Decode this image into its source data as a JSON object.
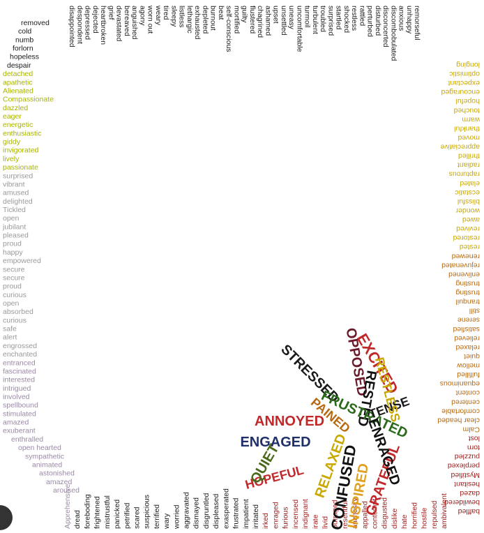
{
  "words": {
    "top": [
      {
        "color": "#1a1a1a",
        "words": [
          "disappointed",
          "despondent",
          "depressed",
          "dejected",
          "heartbroken",
          "grief",
          "devastated",
          "bereaved",
          "anguished",
          "agony",
          "worn out",
          "weary",
          "tired",
          "sleepy",
          "listless",
          "lethargic",
          "exhausted",
          "depleted",
          "burnout",
          "beat",
          "self-conscious",
          "mortified",
          "guilty",
          "flustered",
          "chagrined",
          "ashamed",
          "upset",
          "unsettled",
          "uneasy",
          "uncomfortable",
          "turmoil",
          "turbulent",
          "troubled",
          "surprised",
          "startled",
          "shocked",
          "restless",
          "rattled",
          "perturbed",
          "disturbed",
          "disconcerted",
          "discombobulated",
          "anxious",
          "unhappy",
          "remorseful"
        ]
      }
    ],
    "right": [
      {
        "color": "#c9a800",
        "words": [
          "longing",
          "optimistic",
          "expectant",
          "encouraged",
          "hopeful",
          "touched",
          "warm",
          "thankful",
          "moved",
          "appreciative",
          "thrilled",
          "radiant",
          "rapturous",
          "elated",
          "ecstatic",
          "blissful",
          "wonder",
          "awed",
          "revived",
          "restored",
          "rested"
        ]
      },
      {
        "color": "#b86a12",
        "words": [
          "renewed",
          "rejuvenated",
          "enlivened",
          "trusting",
          "trusting",
          "tranquil",
          "still",
          "serene",
          "satisfied",
          "relieved",
          "relaxed",
          "quiet",
          "mellow",
          "fulfilled",
          "equanimous",
          "content",
          "centered",
          "comfortable",
          "clear headed",
          "Calm"
        ]
      },
      {
        "color": "#9e1a1a",
        "words": [
          "lost",
          "torn",
          "puzzled",
          "perplexed",
          "Mystified",
          "hesitant",
          "dazed",
          "bewildered",
          "baffled"
        ]
      }
    ],
    "left": [
      {
        "color": "#1a1a1a",
        "words": [
          "removed",
          "cold",
          "numb",
          "forlorn",
          "hopeless",
          "despair"
        ]
      },
      {
        "color": "#a9b400",
        "words": [
          "detached",
          "apathetic",
          "Alienated",
          "Compassionate",
          "dazzled",
          "eager",
          "energetic",
          "enthusiastic",
          "giddy",
          "invigorated",
          "lively",
          "passionate"
        ]
      },
      {
        "color": "#9a9a9a",
        "words": [
          "surprised",
          "vibrant",
          "amused",
          "delighted",
          "Tickled",
          "open",
          "jubilant",
          "pleased",
          "proud",
          "happy",
          "empowered",
          "secure",
          "secure",
          "proud",
          "curious",
          "open",
          "absorbed",
          "curious",
          "safe",
          "alert",
          "engrossed",
          "enchanted"
        ]
      },
      {
        "color": "#9b8aa6",
        "words": [
          "entranced",
          "fascinated",
          "interested",
          "intrigued",
          "involved",
          "spellbound",
          "stimulated",
          "amazed",
          "exuberant",
          "enthralled",
          "open hearted",
          "sympathetic",
          "animated",
          "astonished",
          "amazed",
          "aroused"
        ]
      }
    ],
    "bottom": [
      {
        "color": "#9b8aa6",
        "words": [
          "Apprehensive"
        ]
      },
      {
        "color": "#1a1a1a",
        "words": [
          "dread",
          "foreboding",
          "frightened",
          "mistrustful",
          "panicked",
          "petrified",
          "scared",
          "suspicious",
          "terrified",
          "wary",
          "worried",
          "aggravated",
          "dismayed",
          "disgruntled",
          "displeased",
          "exasperated",
          "frustrated",
          "impatient",
          "irritated"
        ]
      },
      {
        "color": "#9e1a1a",
        "words": [
          "irked",
          "enraged",
          "furious",
          "incensed",
          "indignant",
          "irate",
          "livid",
          "outraged",
          "resentful",
          "animosity",
          "appalled",
          "contempt",
          "disgusted",
          "dislike",
          "hate",
          "horrified",
          "hostile",
          "repulsed",
          "ambivalent"
        ]
      }
    ],
    "cluster": [
      {
        "text": "EXCITED",
        "color": "#c0282a"
      },
      {
        "text": "OPPOSED",
        "color": "#6a1a2a"
      },
      {
        "text": "RESTED",
        "color": "#111111"
      },
      {
        "text": "STRESSED",
        "color": "#1a1a1a"
      },
      {
        "text": "ANNOYED",
        "color": "#c0282a"
      },
      {
        "text": "ENGAGED",
        "color": "#1f2f6a"
      },
      {
        "text": "HOPEFUL",
        "color": "#c0282a"
      },
      {
        "text": "QUIET",
        "color": "#4a6a1a"
      },
      {
        "text": "RELAXED",
        "color": "#c9a800"
      },
      {
        "text": "CONFUSED",
        "color": "#111111"
      },
      {
        "text": "INSPIRED",
        "color": "#e0a020"
      },
      {
        "text": "GRATEFUL",
        "color": "#c0282a"
      },
      {
        "text": "FRUSTRATED",
        "color": "#2a6a1a"
      },
      {
        "text": "TENSE",
        "color": "#1a1a1a"
      },
      {
        "text": "ENRAGED",
        "color": "#111111"
      },
      {
        "text": "RESTLESS",
        "color": "#c9a800"
      },
      {
        "text": "PAINED",
        "color": "#b86a12"
      }
    ]
  }
}
